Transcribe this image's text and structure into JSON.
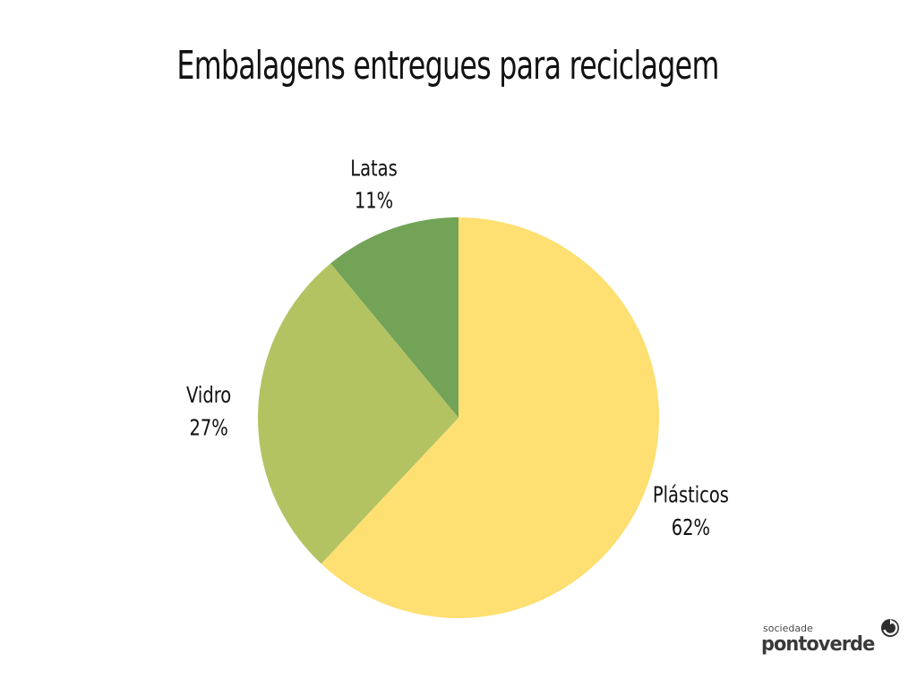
{
  "chart_data": {
    "type": "pie",
    "title": "Embalagens entregues para reciclagem",
    "start_angle_deg": 0,
    "direction": "clockwise",
    "legend": "none",
    "slices": [
      {
        "label": "Plásticos",
        "value": 62,
        "value_label": "62%",
        "color": "#fddf72"
      },
      {
        "label": "Vidro",
        "value": 27,
        "value_label": "27%",
        "color": "#b4c362"
      },
      {
        "label": "Latas",
        "value": 11,
        "value_label": "11%",
        "color": "#72a357"
      }
    ]
  },
  "logo": {
    "small_text": "sociedade",
    "big_text": "pontoverde",
    "mark_icon": "recycle-arrow-icon"
  }
}
